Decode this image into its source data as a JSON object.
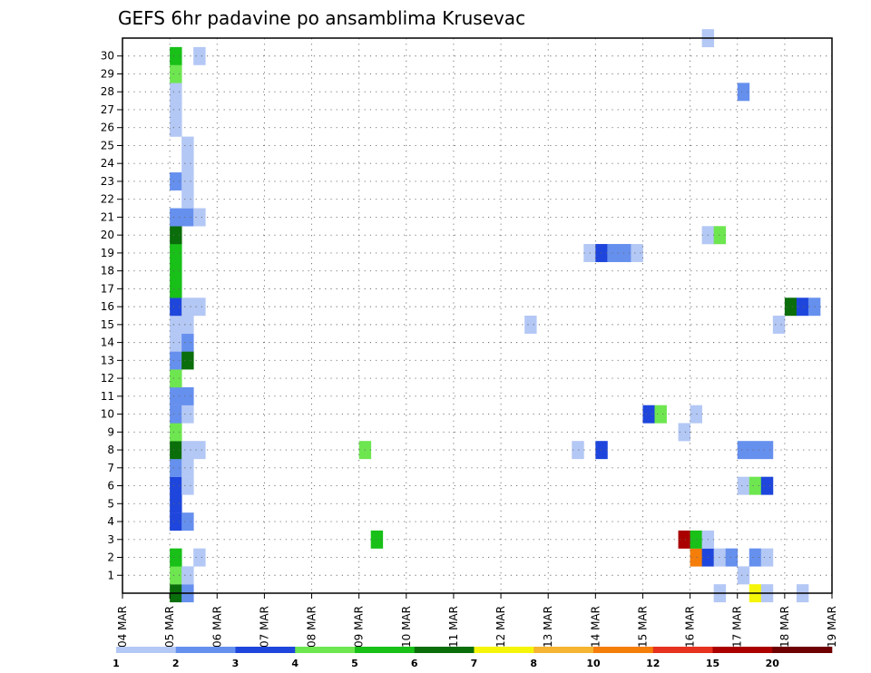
{
  "chart_data": {
    "type": "heatmap",
    "title": "GEFS 6hr padavine po ansamblima Krusevac",
    "xlabel": "",
    "ylabel": "",
    "x_tick_labels": [
      "04 MAR",
      "05 MAR",
      "06 MAR",
      "07 MAR",
      "08 MAR",
      "09 MAR",
      "10 MAR",
      "11 MAR",
      "12 MAR",
      "13 MAR",
      "14 MAR",
      "15 MAR",
      "16 MAR",
      "17 MAR",
      "18 MAR",
      "19 MAR"
    ],
    "xlim_days": [
      0,
      15
    ],
    "y_tick_labels": [
      "1",
      "2",
      "3",
      "4",
      "5",
      "6",
      "7",
      "8",
      "9",
      "10",
      "11",
      "12",
      "13",
      "14",
      "15",
      "16",
      "17",
      "18",
      "19",
      "20",
      "21",
      "22",
      "23",
      "24",
      "25",
      "26",
      "27",
      "28",
      "29",
      "30"
    ],
    "ylim": [
      0,
      30
    ],
    "grid": true,
    "colorbar": {
      "labels": [
        "1",
        "2",
        "3",
        "4",
        "5",
        "6",
        "7",
        "8",
        "10",
        "12",
        "15",
        "20"
      ],
      "colors": [
        "#b4c8f5",
        "#6690ee",
        "#1e46dc",
        "#6ee650",
        "#18c018",
        "#0a6e0a",
        "#f5f50a",
        "#f5b432",
        "#f57d0a",
        "#e6321e",
        "#aa0000",
        "#6e0000"
      ]
    },
    "cells": [
      {
        "day": 1.0,
        "m": 0,
        "level": 5
      },
      {
        "day": 1.25,
        "m": 0,
        "level": 1
      },
      {
        "day": 12.5,
        "m": 0,
        "level": 0
      },
      {
        "day": 13.25,
        "m": 0,
        "level": 6
      },
      {
        "day": 13.5,
        "m": 0,
        "level": 0
      },
      {
        "day": 14.25,
        "m": 0,
        "level": 0
      },
      {
        "day": 1.0,
        "m": 1,
        "level": 3
      },
      {
        "day": 1.25,
        "m": 1,
        "level": 0
      },
      {
        "day": 13.0,
        "m": 1,
        "level": 0
      },
      {
        "day": 1.0,
        "m": 2,
        "level": 4
      },
      {
        "day": 1.5,
        "m": 2,
        "level": 0
      },
      {
        "day": 12.0,
        "m": 2,
        "level": 8
      },
      {
        "day": 12.25,
        "m": 2,
        "level": 2
      },
      {
        "day": 12.5,
        "m": 2,
        "level": 0
      },
      {
        "day": 12.75,
        "m": 2,
        "level": 1
      },
      {
        "day": 13.25,
        "m": 2,
        "level": 1
      },
      {
        "day": 13.5,
        "m": 2,
        "level": 0
      },
      {
        "day": 5.25,
        "m": 3,
        "level": 4
      },
      {
        "day": 11.75,
        "m": 3,
        "level": 10
      },
      {
        "day": 12.0,
        "m": 3,
        "level": 4
      },
      {
        "day": 12.25,
        "m": 3,
        "level": 0
      },
      {
        "day": 1.0,
        "m": 4,
        "level": 2
      },
      {
        "day": 1.25,
        "m": 4,
        "level": 1
      },
      {
        "day": 1.0,
        "m": 5,
        "level": 2
      },
      {
        "day": 1.0,
        "m": 6,
        "level": 2
      },
      {
        "day": 1.25,
        "m": 6,
        "level": 0
      },
      {
        "day": 13.0,
        "m": 6,
        "level": 0
      },
      {
        "day": 13.25,
        "m": 6,
        "level": 3
      },
      {
        "day": 13.5,
        "m": 6,
        "level": 2
      },
      {
        "day": 1.0,
        "m": 7,
        "level": 1
      },
      {
        "day": 1.25,
        "m": 7,
        "level": 0
      },
      {
        "day": 1.0,
        "m": 8,
        "level": 5
      },
      {
        "day": 1.25,
        "m": 8,
        "level": 0
      },
      {
        "day": 1.5,
        "m": 8,
        "level": 0
      },
      {
        "day": 5.0,
        "m": 8,
        "level": 3
      },
      {
        "day": 9.5,
        "m": 8,
        "level": 0
      },
      {
        "day": 10.0,
        "m": 8,
        "level": 2
      },
      {
        "day": 13.0,
        "m": 8,
        "level": 1
      },
      {
        "day": 13.25,
        "m": 8,
        "level": 1
      },
      {
        "day": 13.5,
        "m": 8,
        "level": 1
      },
      {
        "day": 1.0,
        "m": 9,
        "level": 3
      },
      {
        "day": 11.75,
        "m": 9,
        "level": 0
      },
      {
        "day": 1.0,
        "m": 10,
        "level": 1
      },
      {
        "day": 1.25,
        "m": 10,
        "level": 0
      },
      {
        "day": 11.0,
        "m": 10,
        "level": 2
      },
      {
        "day": 11.25,
        "m": 10,
        "level": 3
      },
      {
        "day": 12.0,
        "m": 10,
        "level": 0
      },
      {
        "day": 1.0,
        "m": 11,
        "level": 1
      },
      {
        "day": 1.25,
        "m": 11,
        "level": 1
      },
      {
        "day": 1.0,
        "m": 12,
        "level": 3
      },
      {
        "day": 1.0,
        "m": 13,
        "level": 1
      },
      {
        "day": 1.25,
        "m": 13,
        "level": 5
      },
      {
        "day": 1.0,
        "m": 14,
        "level": 0
      },
      {
        "day": 1.25,
        "m": 14,
        "level": 1
      },
      {
        "day": 1.0,
        "m": 15,
        "level": 0
      },
      {
        "day": 1.25,
        "m": 15,
        "level": 0
      },
      {
        "day": 8.5,
        "m": 15,
        "level": 0
      },
      {
        "day": 13.75,
        "m": 15,
        "level": 0
      },
      {
        "day": 1.0,
        "m": 16,
        "level": 2
      },
      {
        "day": 1.25,
        "m": 16,
        "level": 0
      },
      {
        "day": 1.5,
        "m": 16,
        "level": 0
      },
      {
        "day": 14.0,
        "m": 16,
        "level": 5
      },
      {
        "day": 14.25,
        "m": 16,
        "level": 2
      },
      {
        "day": 14.5,
        "m": 16,
        "level": 1
      },
      {
        "day": 1.0,
        "m": 17,
        "level": 4
      },
      {
        "day": 1.0,
        "m": 18,
        "level": 4
      },
      {
        "day": 1.0,
        "m": 19,
        "level": 4
      },
      {
        "day": 9.75,
        "m": 19,
        "level": 0
      },
      {
        "day": 10.0,
        "m": 19,
        "level": 2
      },
      {
        "day": 10.25,
        "m": 19,
        "level": 1
      },
      {
        "day": 10.5,
        "m": 19,
        "level": 1
      },
      {
        "day": 10.75,
        "m": 19,
        "level": 0
      },
      {
        "day": 1.0,
        "m": 20,
        "level": 5
      },
      {
        "day": 12.25,
        "m": 20,
        "level": 0
      },
      {
        "day": 12.5,
        "m": 20,
        "level": 3
      },
      {
        "day": 1.0,
        "m": 21,
        "level": 1
      },
      {
        "day": 1.25,
        "m": 21,
        "level": 1
      },
      {
        "day": 1.5,
        "m": 21,
        "level": 0
      },
      {
        "day": 1.25,
        "m": 22,
        "level": 0
      },
      {
        "day": 1.0,
        "m": 23,
        "level": 1
      },
      {
        "day": 1.25,
        "m": 23,
        "level": 0
      },
      {
        "day": 1.25,
        "m": 24,
        "level": 0
      },
      {
        "day": 1.25,
        "m": 25,
        "level": 0
      },
      {
        "day": 1.0,
        "m": 26,
        "level": 0
      },
      {
        "day": 1.0,
        "m": 27,
        "level": 0
      },
      {
        "day": 1.0,
        "m": 28,
        "level": 0
      },
      {
        "day": 13.0,
        "m": 28,
        "level": 1
      },
      {
        "day": 1.0,
        "m": 29,
        "level": 3
      },
      {
        "day": 1.0,
        "m": 30,
        "level": 4
      },
      {
        "day": 1.5,
        "m": 30,
        "level": 0
      },
      {
        "day": 12.25,
        "m": 31,
        "level": 0
      }
    ]
  }
}
